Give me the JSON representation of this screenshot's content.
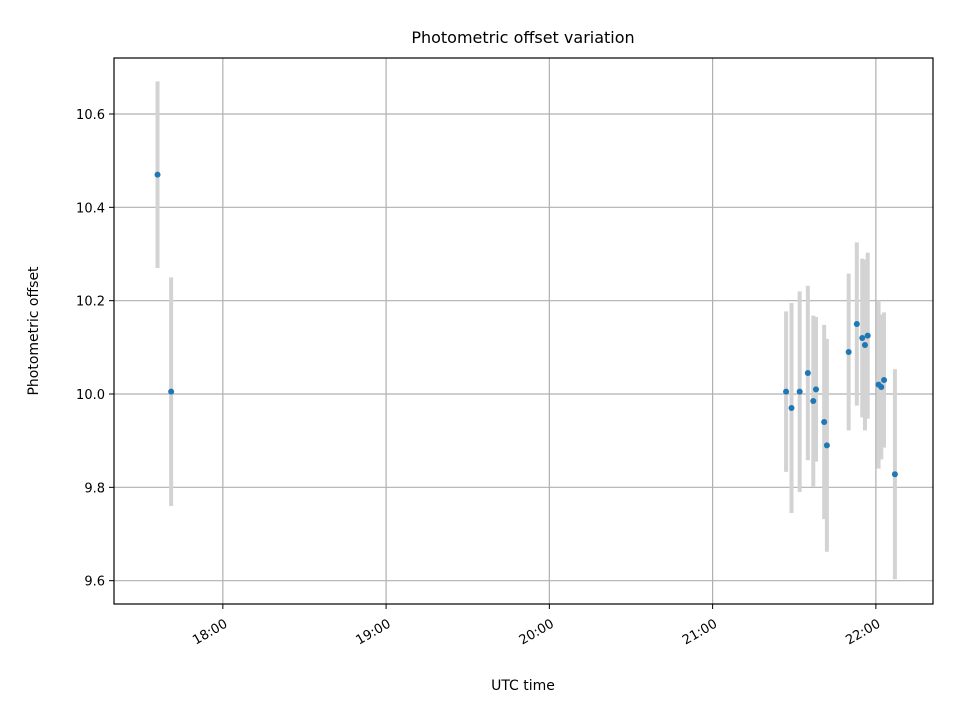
{
  "chart_data": {
    "type": "scatter",
    "title": "Photometric offset variation",
    "xlabel": "UTC time",
    "ylabel": "Photometric offset",
    "x_tick_labels": [
      "18:00",
      "19:00",
      "20:00",
      "21:00",
      "22:00"
    ],
    "x_ticks": [
      "18:00",
      "19:00",
      "20:00",
      "21:00",
      "22:00"
    ],
    "y_tick_labels": [
      "9.6",
      "9.8",
      "10.0",
      "10.2",
      "10.4",
      "10.6"
    ],
    "y_ticks": [
      9.6,
      9.8,
      10.0,
      10.2,
      10.4,
      10.6
    ],
    "xlim": [
      "17:20",
      "22:21"
    ],
    "ylim": [
      9.55,
      10.72
    ],
    "grid": true,
    "colors": {
      "points": "#1f77b4",
      "errorbars": "#d3d3d3",
      "grid": "#b0b0b0"
    },
    "points": [
      {
        "x": "17:36",
        "y": 10.47,
        "err": 0.2
      },
      {
        "x": "17:41",
        "y": 10.005,
        "err": 0.245
      },
      {
        "x": "21:27",
        "y": 10.005,
        "err": 0.172
      },
      {
        "x": "21:29",
        "y": 9.97,
        "err": 0.225
      },
      {
        "x": "21:32",
        "y": 10.005,
        "err": 0.215
      },
      {
        "x": "21:35",
        "y": 10.045,
        "err": 0.187
      },
      {
        "x": "21:37",
        "y": 9.985,
        "err": 0.183
      },
      {
        "x": "21:38",
        "y": 10.01,
        "err": 0.155
      },
      {
        "x": "21:41",
        "y": 9.94,
        "err": 0.208
      },
      {
        "x": "21:42",
        "y": 9.89,
        "err": 0.228
      },
      {
        "x": "21:50",
        "y": 10.09,
        "err": 0.168
      },
      {
        "x": "21:53",
        "y": 10.15,
        "err": 0.175
      },
      {
        "x": "21:55",
        "y": 10.12,
        "err": 0.17
      },
      {
        "x": "21:56",
        "y": 10.105,
        "err": 0.183
      },
      {
        "x": "21:57",
        "y": 10.125,
        "err": 0.178
      },
      {
        "x": "22:01",
        "y": 10.02,
        "err": 0.18
      },
      {
        "x": "22:02",
        "y": 10.015,
        "err": 0.155
      },
      {
        "x": "22:03",
        "y": 10.03,
        "err": 0.145
      },
      {
        "x": "22:07",
        "y": 9.828,
        "err": 0.225
      }
    ]
  }
}
